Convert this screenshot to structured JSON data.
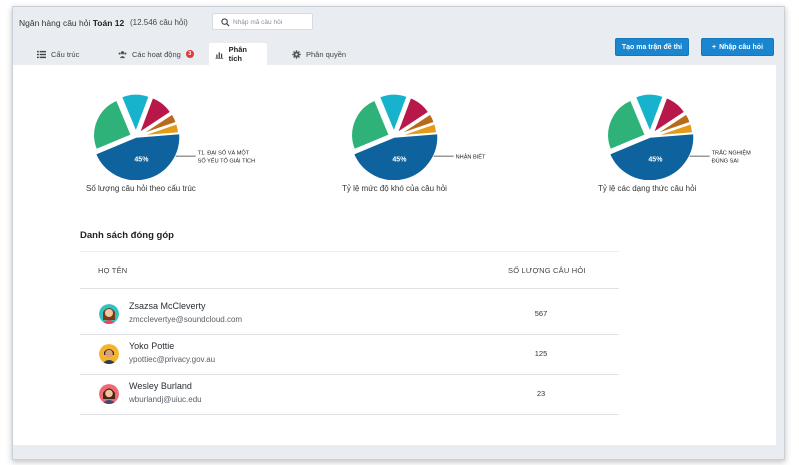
{
  "header": {
    "title_prefix": "Ngân hàng câu hỏi",
    "title_bold": "Toán 12",
    "question_count": "(12.546 câu hỏi)",
    "search_placeholder": "Nhập mã câu hỏi"
  },
  "tabs": [
    {
      "label": "Cấu trúc",
      "icon": "list-icon"
    },
    {
      "label": "Các hoạt động",
      "icon": "users-icon",
      "badge": "3"
    },
    {
      "label": "Phân tích",
      "icon": "bar-chart-icon",
      "active": true
    },
    {
      "label": "Phân quyền",
      "icon": "gear-icon"
    }
  ],
  "buttons": {
    "create_matrix": "Tạo ma trận đề thi",
    "add_question": "Nhập câu hỏi",
    "add_question_icon": "+"
  },
  "colors": {
    "accent": "#1a86cf",
    "pie_blue": "#0e639f",
    "pie_green": "#2fb27a",
    "pie_cyan": "#17b3cc",
    "pie_crimson": "#b8174a",
    "pie_orange": "#e39b1a",
    "pie_brown": "#b86a1d"
  },
  "charts": [
    {
      "title": "Số lượng câu hỏi theo cấu trúc",
      "callout": [
        "T1. ĐẠI SỐ VÀ MỘT",
        "SỐ YẾU TỐ GIẢI TÍCH"
      ],
      "center_label": "45%"
    },
    {
      "title": "Tỷ lệ mức độ khó của câu hỏi",
      "callout": [
        "NHẬN BIẾT"
      ],
      "center_label": "45%"
    },
    {
      "title": "Tỷ lệ các dạng thức câu hỏi",
      "callout": [
        "TRẮC NGHIỆM",
        "ĐÚNG SAI"
      ],
      "center_label": "45%"
    }
  ],
  "chart_data": [
    {
      "type": "pie",
      "title": "Số lượng câu hỏi theo cấu trúc",
      "labels": [
        "T1. ĐẠI SỐ VÀ MỘT SỐ YẾU TỐ GIẢI TÍCH",
        "",
        "",
        "",
        "",
        ""
      ],
      "values": [
        45,
        25,
        12,
        10,
        4,
        4
      ]
    },
    {
      "type": "pie",
      "title": "Tỷ lệ mức độ khó của câu hỏi",
      "labels": [
        "NHẬN BIẾT",
        "",
        "",
        "",
        "",
        ""
      ],
      "values": [
        45,
        25,
        12,
        10,
        4,
        4
      ]
    },
    {
      "type": "pie",
      "title": "Tỷ lệ các dạng thức câu hỏi",
      "labels": [
        "TRẮC NGHIỆM ĐÚNG SAI",
        "",
        "",
        "",
        "",
        ""
      ],
      "values": [
        45,
        25,
        12,
        10,
        4,
        4
      ]
    }
  ],
  "contributors": {
    "section_title": "Danh sách đóng góp",
    "columns": [
      "HỌ TÊN",
      "SỐ LƯỢNG CÂU HỎI"
    ],
    "rows": [
      {
        "name": "Zsazsa McCleverty",
        "email": "zmcclevertye@soundcloud.com",
        "count": "567"
      },
      {
        "name": "Yoko Pottie",
        "email": "ypottiec@privacy.gov.au",
        "count": "125"
      },
      {
        "name": "Wesley Burland",
        "email": "wburlandj@uiuc.edu",
        "count": "23"
      }
    ]
  }
}
